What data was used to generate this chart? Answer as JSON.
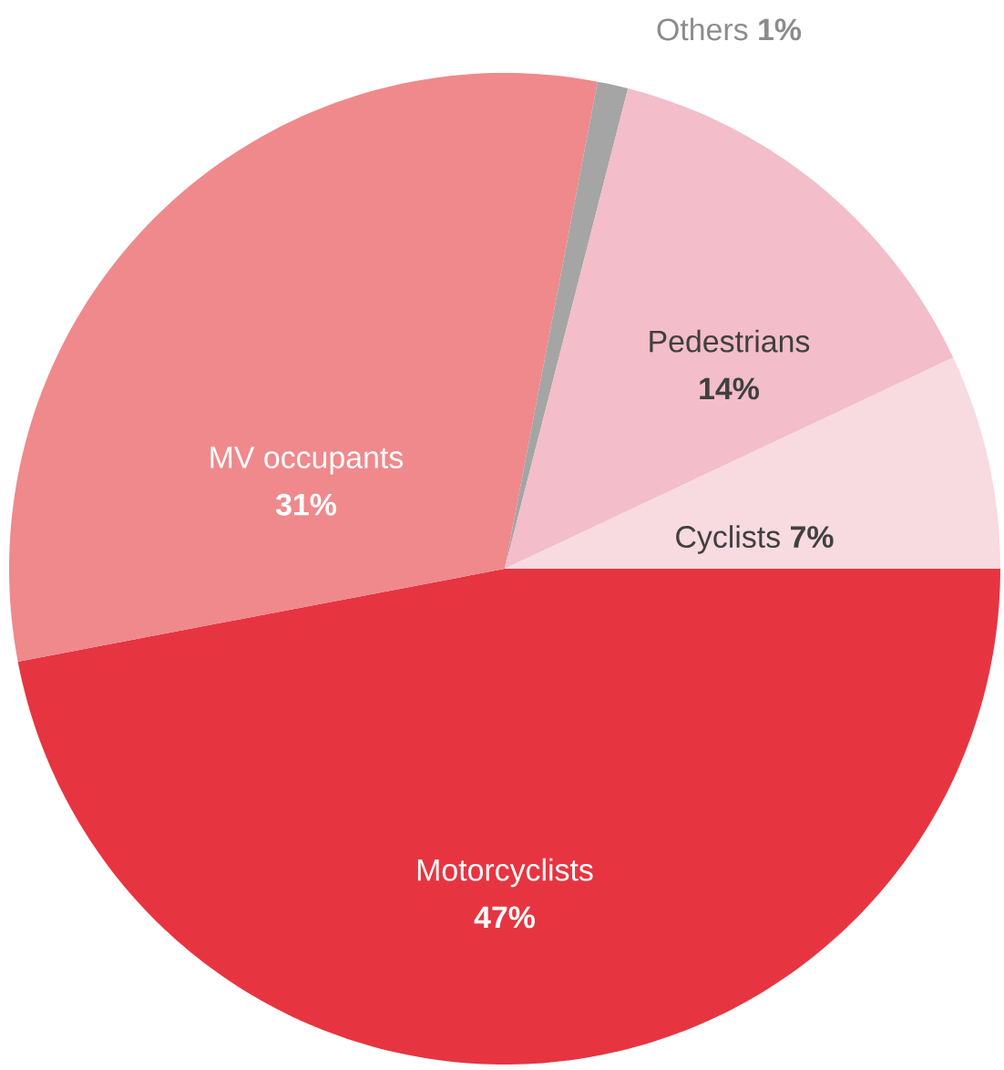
{
  "chart_data": {
    "type": "pie",
    "categories": [
      "Motorcyclists",
      "MV occupants",
      "Others",
      "Pedestrians",
      "Cyclists"
    ],
    "values": [
      47,
      31,
      1,
      14,
      7
    ],
    "value_labels": [
      "47%",
      "31%",
      "1%",
      "14%",
      "7%"
    ],
    "colors": [
      "#e63541",
      "#ef898c",
      "#a5a5a5",
      "#f3bdca",
      "#f8dae1"
    ]
  }
}
